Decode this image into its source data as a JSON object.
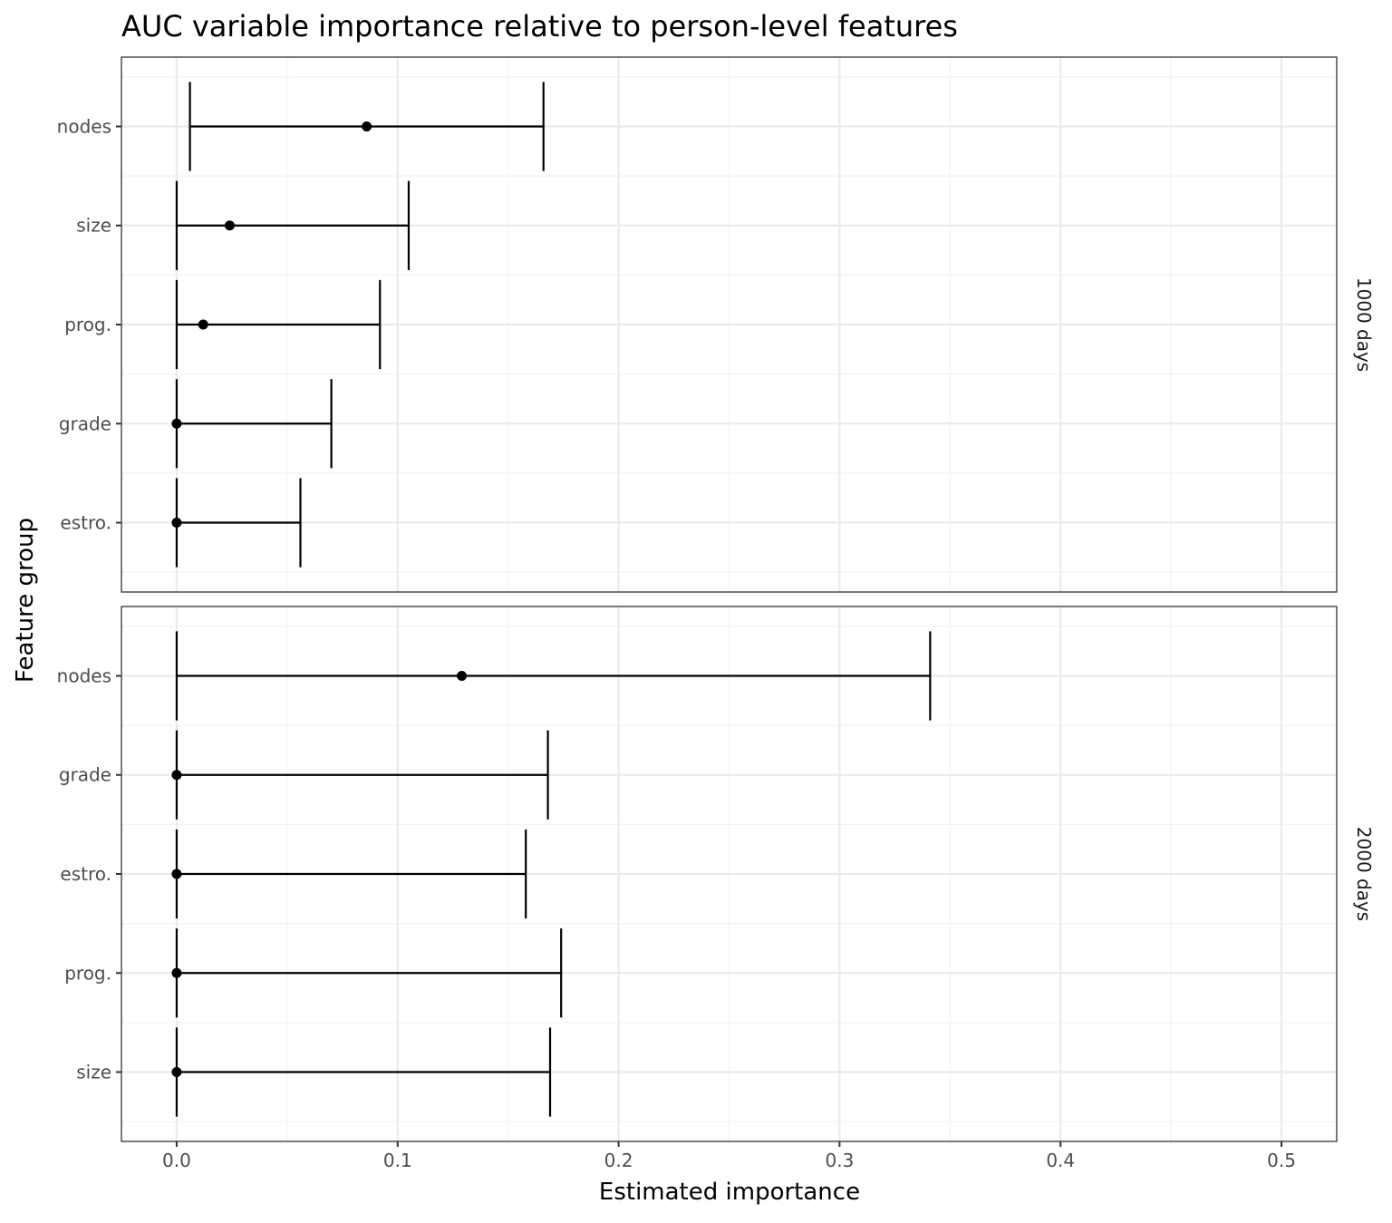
{
  "chart_data": {
    "type": "errorbar",
    "title": "AUC variable importance relative to person-level features",
    "xlabel": "Estimated importance",
    "ylabel": "Feature group",
    "xlim": [
      -0.025,
      0.525
    ],
    "x_ticks": [
      "0.0",
      "0.1",
      "0.2",
      "0.3",
      "0.4",
      "0.5"
    ],
    "x_tick_values": [
      0,
      0.1,
      0.2,
      0.3,
      0.4,
      0.5
    ],
    "grid": true,
    "facets": [
      {
        "label": "1000 days",
        "categories": [
          "nodes",
          "size",
          "prog.",
          "grade",
          "estro."
        ],
        "estimate": [
          0.086,
          0.024,
          0.012,
          0.0,
          0.0
        ],
        "ci_lower": [
          0.006,
          0.0,
          0.0,
          0.0,
          0.0
        ],
        "ci_upper": [
          0.166,
          0.105,
          0.092,
          0.07,
          0.056
        ]
      },
      {
        "label": "2000 days",
        "categories": [
          "nodes",
          "grade",
          "estro.",
          "prog.",
          "size"
        ],
        "estimate": [
          0.129,
          0.0,
          0.0,
          0.0,
          0.0
        ],
        "ci_lower": [
          0.0,
          0.0,
          0.0,
          0.0,
          0.0
        ],
        "ci_upper": [
          0.341,
          0.168,
          0.158,
          0.174,
          0.169
        ]
      }
    ]
  }
}
